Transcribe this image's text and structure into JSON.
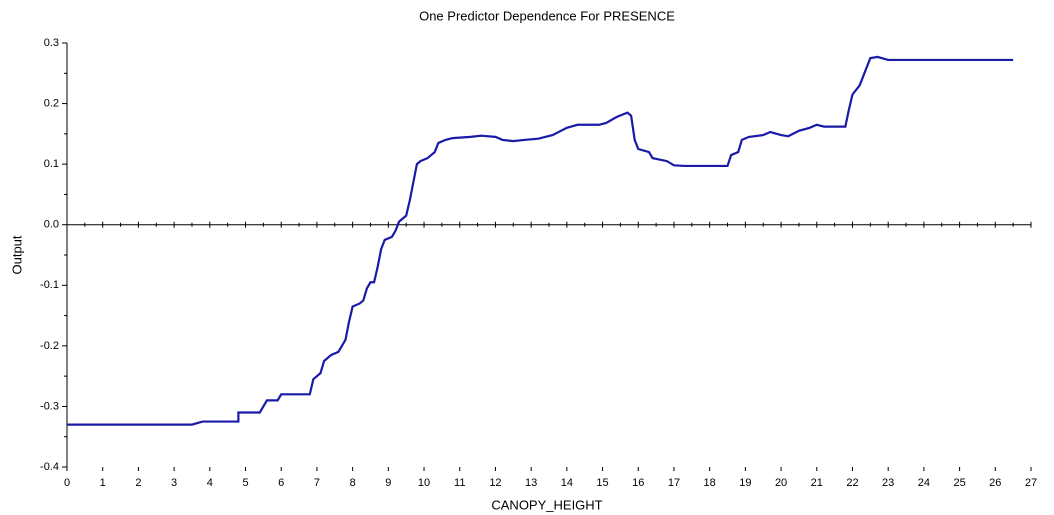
{
  "chart_data": {
    "type": "line",
    "title": "One Predictor Dependence For PRESENCE",
    "xlabel": "CANOPY_HEIGHT",
    "ylabel": "Output",
    "color": "#1a1aa8",
    "xlim": [
      0,
      27
    ],
    "ylim": [
      -0.4,
      0.3
    ],
    "xticks": [
      0,
      1,
      2,
      3,
      4,
      5,
      6,
      7,
      8,
      9,
      10,
      11,
      12,
      13,
      14,
      15,
      16,
      17,
      18,
      19,
      20,
      21,
      22,
      23,
      24,
      25,
      26,
      27
    ],
    "yticks": [
      {
        "value": -0.4,
        "label": "-0.4"
      },
      -0.3,
      -0.2,
      -0.1,
      {
        "value": 0,
        "label": "0.0"
      },
      0.1,
      0.2,
      0.3
    ],
    "x": [
      0,
      3.5,
      3.8,
      4.8,
      4.8,
      5.4,
      5.6,
      5.9,
      6.0,
      6.8,
      6.9,
      7.1,
      7.2,
      7.4,
      7.6,
      7.8,
      7.9,
      8.0,
      8.2,
      8.3,
      8.4,
      8.5,
      8.6,
      8.7,
      8.8,
      8.9,
      9.1,
      9.2,
      9.3,
      9.5,
      9.6,
      9.7,
      9.8,
      9.9,
      10.1,
      10.3,
      10.4,
      10.6,
      10.8,
      11.3,
      11.6,
      12.0,
      12.2,
      12.5,
      12.8,
      13.2,
      13.6,
      14.0,
      14.3,
      14.9,
      15.1,
      15.4,
      15.7,
      15.8,
      15.9,
      16.0,
      16.3,
      16.4,
      16.8,
      17.0,
      17.3,
      18.5,
      18.6,
      18.8,
      18.9,
      19.1,
      19.5,
      19.7,
      20.0,
      20.2,
      20.5,
      20.8,
      21.0,
      21.2,
      21.8,
      21.9,
      22.0,
      22.2,
      22.3,
      22.5,
      22.7,
      23.0,
      24.0,
      26.5
    ],
    "values": [
      -0.33,
      -0.33,
      -0.325,
      -0.325,
      -0.31,
      -0.31,
      -0.29,
      -0.29,
      -0.28,
      -0.28,
      -0.255,
      -0.245,
      -0.225,
      -0.215,
      -0.21,
      -0.19,
      -0.16,
      -0.135,
      -0.13,
      -0.125,
      -0.105,
      -0.095,
      -0.095,
      -0.07,
      -0.04,
      -0.025,
      -0.02,
      -0.01,
      0.005,
      0.015,
      0.04,
      0.07,
      0.1,
      0.105,
      0.11,
      0.12,
      0.135,
      0.14,
      0.143,
      0.145,
      0.147,
      0.145,
      0.14,
      0.138,
      0.14,
      0.142,
      0.148,
      0.16,
      0.165,
      0.165,
      0.168,
      0.178,
      0.185,
      0.18,
      0.14,
      0.125,
      0.12,
      0.11,
      0.105,
      0.098,
      0.097,
      0.097,
      0.115,
      0.12,
      0.14,
      0.145,
      0.148,
      0.153,
      0.148,
      0.146,
      0.155,
      0.16,
      0.165,
      0.162,
      0.162,
      0.19,
      0.215,
      0.23,
      0.245,
      0.275,
      0.277,
      0.272,
      0.272,
      0.272
    ]
  }
}
